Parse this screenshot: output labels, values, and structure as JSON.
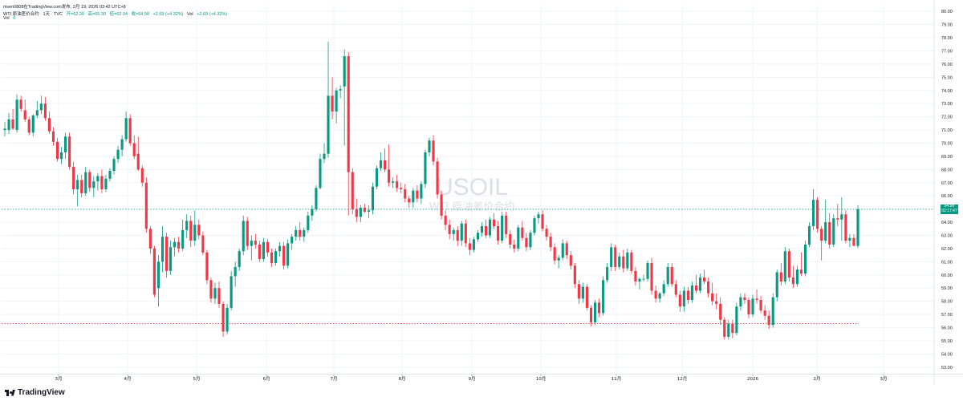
{
  "header": {
    "publisher": "nisen0808在TradingView.com发布, 2月 19, 2026 03:42 UTC+8",
    "instrument": "WTI 原油差价合约 · 1天 · TVC",
    "open": "开=62.20",
    "high": "高=65.30",
    "low": "低=62.04",
    "close": "收=64.98",
    "change": "+2.69 (+4.32%)",
    "vol_label": "Vol",
    "vol_change": "+2.69 (+4.32%)",
    "vol_line_label": "Vol",
    "vol_line_value": "0"
  },
  "watermark": {
    "symbol": "USOIL",
    "description": "WTI 原油差价合约"
  },
  "price_tag": {
    "price": "64.98",
    "countdown": "02:17:47"
  },
  "brand": {
    "name": "TradingView"
  },
  "colors": {
    "up": "#089981",
    "down": "#F23645",
    "grid": "#F0F3FA",
    "text": "#131722",
    "current_line": "#089981",
    "support_line": "#F23645"
  },
  "chart_data": {
    "type": "candlestick",
    "y_axis": {
      "ticks": [
        53,
        54,
        55,
        56,
        57,
        58,
        59,
        60,
        61,
        62,
        63,
        64,
        65,
        66,
        67,
        68,
        69,
        70,
        71,
        72,
        73,
        74,
        75,
        76,
        77,
        78,
        79,
        80
      ],
      "tick_labels": [
        "53.00",
        "54.00",
        "55.00",
        "56.00",
        "57.00",
        "58.00",
        "59.00",
        "60.00",
        "61.00",
        "62.00",
        "63.00",
        "64.00",
        "65.00",
        "66.00",
        "67.00",
        "68.00",
        "69.00",
        "70.00",
        "71.00",
        "72.00",
        "73.00",
        "74.00",
        "75.00",
        "76.00",
        "77.00",
        "78.00",
        "79.00",
        "80.00"
      ],
      "range": [
        52.5,
        80.5
      ],
      "position": "right"
    },
    "x_axis": {
      "tick_labels": [
        "3月",
        "4月",
        "5月",
        "6月",
        "7月",
        "8月",
        "9月",
        "10月",
        "11月",
        "12月",
        "2026",
        "2月",
        "3月"
      ]
    },
    "grid": true,
    "current_price": 64.98,
    "horizontal_levels": [
      56.3
    ],
    "candles": [
      [
        71.0,
        71.6,
        70.5,
        71.1
      ],
      [
        71.0,
        72.3,
        70.7,
        71.8
      ],
      [
        71.8,
        72.6,
        71.0,
        71.1
      ],
      [
        71.0,
        73.7,
        70.8,
        73.3
      ],
      [
        73.3,
        73.6,
        72.4,
        72.6
      ],
      [
        72.5,
        73.3,
        71.6,
        71.8
      ],
      [
        71.8,
        72.0,
        70.6,
        70.8
      ],
      [
        70.8,
        72.2,
        70.5,
        72.1
      ],
      [
        72.1,
        73.2,
        71.9,
        72.5
      ],
      [
        72.5,
        73.6,
        72.2,
        73.0
      ],
      [
        73.0,
        73.5,
        71.7,
        71.9
      ],
      [
        71.9,
        72.4,
        70.7,
        70.9
      ],
      [
        70.9,
        71.2,
        69.8,
        70.1
      ],
      [
        70.1,
        70.4,
        68.6,
        68.8
      ],
      [
        68.8,
        69.7,
        68.4,
        69.3
      ],
      [
        69.3,
        70.8,
        68.8,
        70.5
      ],
      [
        70.5,
        70.8,
        68.0,
        68.2
      ],
      [
        68.2,
        68.6,
        66.1,
        66.5
      ],
      [
        66.5,
        67.6,
        65.2,
        67.2
      ],
      [
        67.2,
        67.6,
        65.9,
        66.2
      ],
      [
        66.2,
        68.2,
        66.0,
        67.8
      ],
      [
        67.8,
        68.0,
        66.3,
        66.6
      ],
      [
        66.6,
        67.5,
        65.9,
        67.1
      ],
      [
        67.1,
        67.7,
        66.4,
        67.5
      ],
      [
        67.5,
        68.0,
        66.2,
        66.5
      ],
      [
        66.5,
        67.6,
        66.3,
        67.3
      ],
      [
        67.3,
        68.1,
        67.1,
        67.9
      ],
      [
        67.9,
        69.0,
        67.6,
        68.8
      ],
      [
        68.8,
        69.8,
        68.5,
        69.5
      ],
      [
        69.5,
        70.6,
        69.0,
        70.3
      ],
      [
        70.3,
        72.4,
        70.1,
        71.9
      ],
      [
        71.9,
        72.2,
        69.8,
        70.0
      ],
      [
        70.0,
        70.6,
        68.8,
        69.0
      ],
      [
        69.2,
        70.5,
        67.9,
        68.0
      ],
      [
        68.1,
        68.3,
        66.7,
        67.0
      ],
      [
        67.0,
        67.4,
        63.2,
        63.5
      ],
      [
        63.5,
        63.7,
        61.6,
        62.0
      ],
      [
        62.0,
        62.2,
        58.3,
        58.5
      ],
      [
        59.0,
        61.5,
        57.6,
        61.0
      ],
      [
        61.0,
        63.7,
        60.2,
        62.9
      ],
      [
        62.9,
        63.2,
        59.8,
        60.3
      ],
      [
        60.3,
        62.6,
        60.0,
        62.1
      ],
      [
        62.1,
        62.8,
        61.4,
        62.5
      ],
      [
        62.5,
        62.9,
        61.7,
        62.0
      ],
      [
        62.0,
        64.2,
        61.8,
        63.4
      ],
      [
        63.4,
        64.6,
        62.8,
        64.1
      ],
      [
        64.1,
        64.5,
        62.1,
        62.6
      ],
      [
        62.6,
        64.9,
        62.2,
        63.8
      ],
      [
        63.8,
        64.2,
        62.7,
        63.0
      ],
      [
        63.0,
        63.3,
        61.5,
        61.7
      ],
      [
        61.7,
        61.9,
        59.3,
        59.6
      ],
      [
        59.6,
        59.8,
        57.9,
        58.2
      ],
      [
        58.2,
        59.4,
        57.8,
        59.0
      ],
      [
        59.0,
        59.5,
        57.5,
        57.8
      ],
      [
        57.8,
        58.0,
        55.3,
        55.7
      ],
      [
        55.7,
        57.8,
        55.5,
        57.5
      ],
      [
        57.5,
        60.3,
        57.3,
        59.9
      ],
      [
        59.9,
        61.0,
        59.1,
        60.6
      ],
      [
        60.6,
        62.0,
        60.3,
        61.8
      ],
      [
        61.8,
        64.5,
        61.5,
        64.1
      ],
      [
        64.1,
        64.4,
        61.9,
        62.2
      ],
      [
        62.2,
        63.0,
        61.1,
        62.6
      ],
      [
        62.6,
        63.1,
        62.0,
        62.3
      ],
      [
        62.3,
        62.6,
        61.0,
        61.2
      ],
      [
        61.2,
        62.8,
        61.0,
        62.5
      ],
      [
        62.5,
        62.7,
        61.4,
        61.7
      ],
      [
        61.7,
        62.0,
        60.6,
        60.9
      ],
      [
        60.9,
        62.0,
        60.7,
        61.8
      ],
      [
        61.8,
        62.5,
        61.4,
        62.2
      ],
      [
        62.2,
        62.5,
        60.4,
        60.7
      ],
      [
        60.7,
        62.7,
        60.5,
        62.4
      ],
      [
        62.4,
        63.1,
        61.9,
        62.9
      ],
      [
        62.9,
        63.7,
        62.6,
        63.4
      ],
      [
        63.4,
        64.0,
        62.6,
        62.9
      ],
      [
        62.9,
        63.6,
        62.5,
        63.4
      ],
      [
        63.4,
        64.8,
        63.2,
        64.5
      ],
      [
        64.5,
        65.3,
        64.1,
        65.0
      ],
      [
        65.0,
        66.8,
        64.8,
        66.6
      ],
      [
        66.6,
        69.2,
        66.5,
        68.8
      ],
      [
        68.8,
        70.0,
        68.5,
        69.2
      ],
      [
        69.2,
        77.7,
        68.9,
        73.6
      ],
      [
        73.6,
        75.0,
        71.8,
        72.4
      ],
      [
        72.4,
        74.2,
        71.5,
        74.0
      ],
      [
        74.0,
        74.4,
        73.4,
        74.1
      ],
      [
        74.3,
        77.1,
        69.8,
        76.6
      ],
      [
        76.6,
        76.9,
        64.5,
        67.8
      ],
      [
        67.8,
        68.1,
        64.6,
        65.0
      ],
      [
        65.0,
        65.8,
        64.0,
        64.4
      ],
      [
        64.4,
        65.3,
        64.0,
        65.1
      ],
      [
        65.1,
        65.4,
        64.7,
        64.8
      ],
      [
        64.8,
        65.3,
        64.3,
        64.9
      ],
      [
        64.9,
        67.0,
        64.6,
        66.7
      ],
      [
        66.7,
        68.3,
        66.5,
        68.1
      ],
      [
        68.1,
        69.3,
        67.9,
        68.7
      ],
      [
        68.7,
        69.6,
        67.8,
        68.0
      ],
      [
        68.0,
        69.9,
        66.7,
        67.0
      ],
      [
        67.0,
        67.4,
        66.6,
        67.1
      ],
      [
        67.1,
        67.6,
        66.3,
        66.6
      ],
      [
        66.6,
        67.0,
        66.2,
        66.5
      ],
      [
        66.5,
        66.9,
        65.5,
        65.8
      ],
      [
        65.8,
        66.0,
        65.1,
        65.5
      ],
      [
        65.5,
        66.6,
        65.1,
        66.4
      ],
      [
        66.4,
        66.8,
        65.5,
        65.8
      ],
      [
        65.8,
        67.1,
        65.4,
        66.9
      ],
      [
        66.9,
        69.5,
        66.6,
        69.3
      ],
      [
        69.3,
        70.4,
        69.0,
        70.2
      ],
      [
        70.2,
        70.6,
        68.3,
        68.6
      ],
      [
        68.6,
        68.9,
        65.8,
        66.1
      ],
      [
        66.1,
        66.4,
        64.2,
        64.5
      ],
      [
        64.5,
        64.9,
        63.4,
        63.8
      ],
      [
        63.8,
        64.2,
        62.7,
        63.1
      ],
      [
        63.1,
        63.6,
        62.6,
        63.4
      ],
      [
        63.4,
        63.7,
        62.2,
        62.6
      ],
      [
        62.6,
        64.1,
        62.2,
        63.9
      ],
      [
        63.9,
        64.2,
        62.1,
        62.4
      ],
      [
        62.4,
        62.8,
        61.5,
        61.9
      ],
      [
        61.9,
        62.9,
        61.7,
        62.7
      ],
      [
        62.7,
        63.4,
        62.5,
        63.2
      ],
      [
        63.2,
        64.0,
        62.9,
        63.7
      ],
      [
        63.7,
        64.2,
        62.8,
        63.0
      ],
      [
        63.0,
        64.4,
        62.8,
        64.2
      ],
      [
        64.2,
        64.7,
        63.5,
        63.7
      ],
      [
        63.7,
        64.1,
        62.3,
        62.6
      ],
      [
        62.6,
        64.8,
        62.4,
        64.5
      ],
      [
        64.5,
        64.8,
        62.8,
        63.1
      ],
      [
        63.1,
        63.4,
        62.0,
        62.3
      ],
      [
        62.3,
        62.7,
        61.7,
        62.0
      ],
      [
        62.0,
        63.8,
        61.8,
        63.6
      ],
      [
        63.6,
        64.1,
        62.6,
        62.8
      ],
      [
        62.8,
        63.2,
        61.8,
        62.1
      ],
      [
        62.1,
        63.4,
        61.9,
        63.2
      ],
      [
        63.2,
        64.5,
        63.0,
        64.3
      ],
      [
        64.3,
        64.8,
        63.9,
        64.6
      ],
      [
        64.6,
        64.9,
        63.3,
        63.5
      ],
      [
        63.5,
        63.8,
        62.6,
        62.9
      ],
      [
        62.9,
        63.2,
        61.8,
        62.1
      ],
      [
        62.1,
        62.4,
        60.8,
        61.1
      ],
      [
        61.1,
        61.5,
        60.5,
        61.3
      ],
      [
        61.3,
        62.7,
        61.1,
        62.4
      ],
      [
        62.4,
        62.6,
        61.2,
        61.5
      ],
      [
        61.5,
        61.8,
        60.4,
        60.7
      ],
      [
        60.7,
        60.9,
        59.0,
        59.3
      ],
      [
        59.3,
        59.6,
        57.8,
        58.2
      ],
      [
        58.2,
        59.4,
        57.9,
        59.1
      ],
      [
        59.1,
        59.3,
        57.3,
        57.5
      ],
      [
        57.5,
        57.7,
        56.1,
        56.4
      ],
      [
        56.4,
        58.1,
        56.2,
        57.9
      ],
      [
        57.9,
        58.2,
        56.8,
        57.1
      ],
      [
        57.1,
        59.9,
        56.9,
        59.6
      ],
      [
        59.6,
        60.9,
        59.4,
        60.6
      ],
      [
        60.6,
        62.4,
        60.3,
        62.1
      ],
      [
        62.1,
        62.3,
        60.3,
        60.6
      ],
      [
        60.6,
        61.7,
        60.4,
        61.4
      ],
      [
        61.4,
        61.9,
        60.2,
        60.5
      ],
      [
        60.5,
        62.0,
        60.3,
        61.7
      ],
      [
        61.7,
        61.9,
        60.1,
        60.3
      ],
      [
        60.3,
        60.6,
        59.2,
        59.5
      ],
      [
        59.5,
        59.8,
        58.9,
        59.7
      ],
      [
        59.7,
        60.0,
        59.5,
        59.7
      ],
      [
        59.7,
        61.1,
        59.5,
        60.9
      ],
      [
        60.9,
        61.3,
        58.5,
        58.8
      ],
      [
        58.8,
        59.2,
        57.9,
        58.2
      ],
      [
        58.2,
        58.7,
        57.9,
        58.6
      ],
      [
        58.6,
        59.6,
        58.4,
        59.3
      ],
      [
        59.3,
        60.9,
        59.1,
        60.6
      ],
      [
        60.6,
        60.9,
        59.1,
        59.3
      ],
      [
        59.3,
        59.6,
        58.3,
        58.5
      ],
      [
        58.5,
        58.8,
        57.2,
        57.6
      ],
      [
        57.6,
        59.1,
        57.2,
        58.8
      ],
      [
        58.8,
        59.1,
        57.8,
        58.1
      ],
      [
        58.1,
        59.5,
        57.9,
        59.2
      ],
      [
        59.2,
        60.0,
        58.6,
        58.8
      ],
      [
        58.8,
        60.1,
        58.6,
        59.8
      ],
      [
        59.8,
        60.4,
        59.3,
        59.5
      ],
      [
        59.5,
        59.8,
        58.3,
        58.6
      ],
      [
        58.6,
        59.4,
        57.7,
        58.0
      ],
      [
        58.0,
        58.6,
        57.4,
        57.8
      ],
      [
        57.8,
        58.3,
        56.2,
        56.6
      ],
      [
        56.6,
        56.8,
        55.1,
        55.3
      ],
      [
        55.3,
        56.6,
        55.1,
        56.3
      ],
      [
        56.3,
        56.6,
        55.2,
        55.6
      ],
      [
        55.6,
        57.9,
        55.4,
        57.6
      ],
      [
        57.6,
        58.6,
        57.3,
        58.3
      ],
      [
        58.3,
        58.6,
        57.8,
        58.1
      ],
      [
        58.1,
        58.3,
        56.7,
        57.0
      ],
      [
        57.0,
        58.5,
        56.8,
        58.2
      ],
      [
        58.2,
        58.9,
        57.8,
        58.1
      ],
      [
        58.1,
        58.4,
        57.1,
        57.3
      ],
      [
        57.3,
        57.7,
        56.6,
        56.9
      ],
      [
        56.9,
        57.3,
        55.9,
        56.2
      ],
      [
        56.2,
        58.6,
        56.0,
        58.3
      ],
      [
        58.3,
        60.4,
        58.0,
        60.2
      ],
      [
        60.2,
        60.9,
        59.2,
        59.5
      ],
      [
        59.5,
        62.1,
        59.3,
        61.8
      ],
      [
        61.8,
        62.0,
        59.5,
        59.8
      ],
      [
        59.8,
        60.7,
        59.0,
        59.3
      ],
      [
        59.3,
        60.7,
        59.1,
        60.4
      ],
      [
        60.4,
        61.7,
        59.9,
        60.1
      ],
      [
        60.1,
        62.6,
        59.9,
        62.3
      ],
      [
        62.3,
        64.0,
        62.1,
        63.7
      ],
      [
        63.7,
        66.5,
        63.4,
        65.7
      ],
      [
        65.7,
        65.9,
        63.2,
        63.5
      ],
      [
        63.5,
        63.7,
        61.1,
        62.6
      ],
      [
        62.6,
        65.7,
        62.4,
        64.0
      ],
      [
        64.0,
        64.7,
        62.0,
        62.3
      ],
      [
        62.3,
        64.6,
        62.1,
        64.3
      ],
      [
        64.3,
        65.4,
        63.7,
        64.2
      ],
      [
        64.2,
        65.9,
        62.6,
        64.6
      ],
      [
        64.6,
        64.9,
        62.4,
        62.6
      ],
      [
        62.6,
        63.1,
        62.1,
        62.8
      ],
      [
        62.8,
        63.1,
        62.2,
        62.2
      ],
      [
        62.2,
        65.3,
        62.04,
        64.98
      ]
    ]
  }
}
